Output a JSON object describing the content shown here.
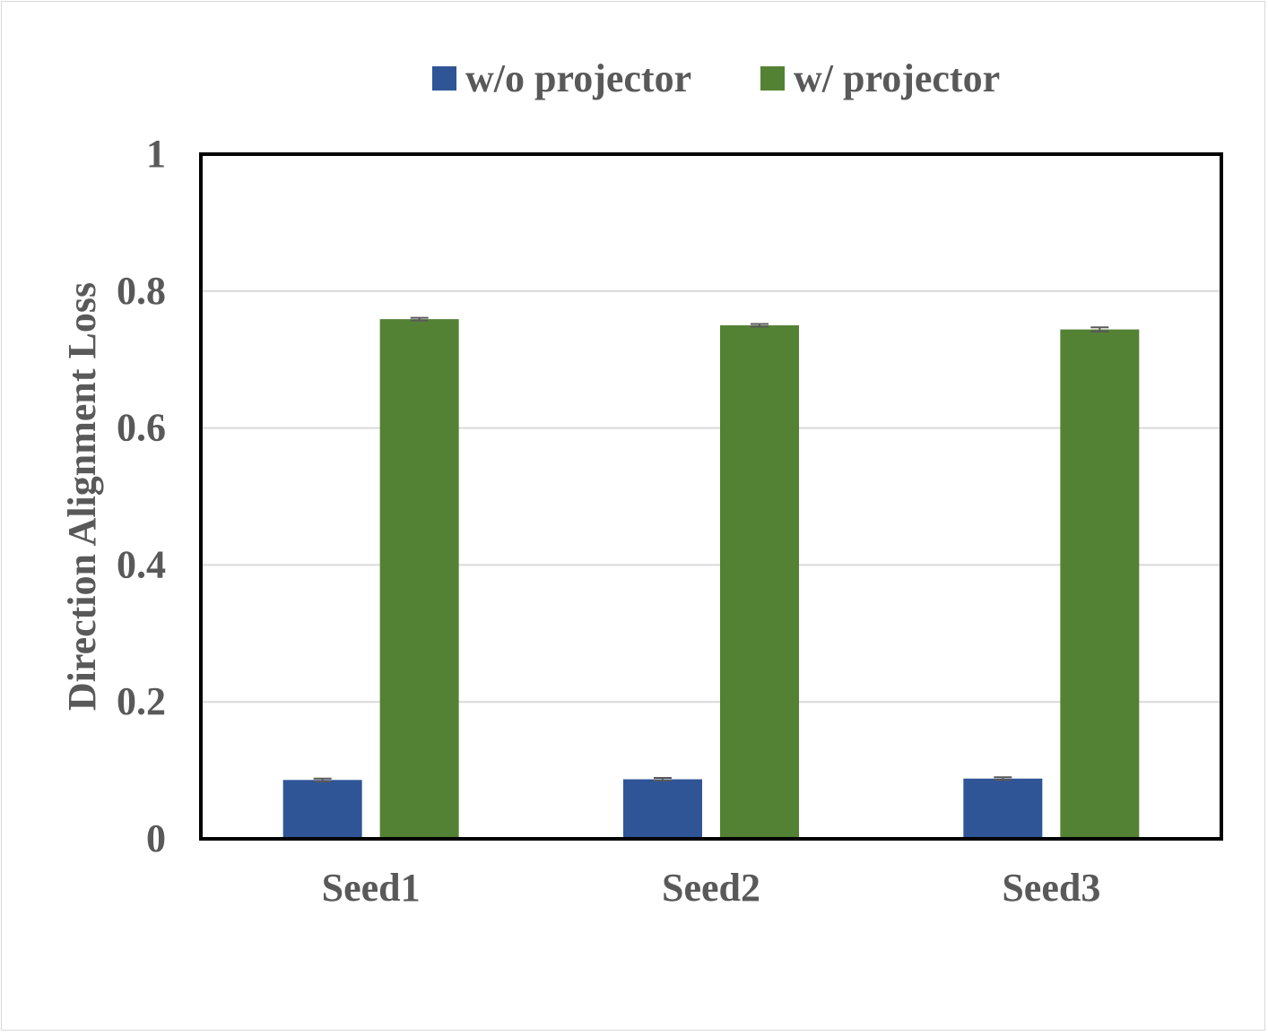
{
  "chart_data": {
    "type": "bar",
    "title": "",
    "xlabel": "",
    "ylabel": "Direction Alignment Loss",
    "categories": [
      "Seed1",
      "Seed2",
      "Seed3"
    ],
    "ylim": [
      0,
      1
    ],
    "yticks": [
      "0",
      "0.2",
      "0.4",
      "0.6",
      "0.8",
      "1"
    ],
    "grid": true,
    "legend_position": "top",
    "error_bars": true,
    "series": [
      {
        "name": "w/o projector",
        "color": "#2F5597",
        "values": [
          0.086,
          0.087,
          0.088
        ],
        "errors": [
          0.002,
          0.002,
          0.002
        ]
      },
      {
        "name": "w/ projector",
        "color": "#548235",
        "values": [
          0.759,
          0.75,
          0.744
        ],
        "errors": [
          0.002,
          0.002,
          0.003
        ]
      }
    ],
    "colors": {
      "axis": "#000000",
      "grid": "#d9d9d9",
      "text": "#595959",
      "error_bar": "#595959"
    }
  }
}
